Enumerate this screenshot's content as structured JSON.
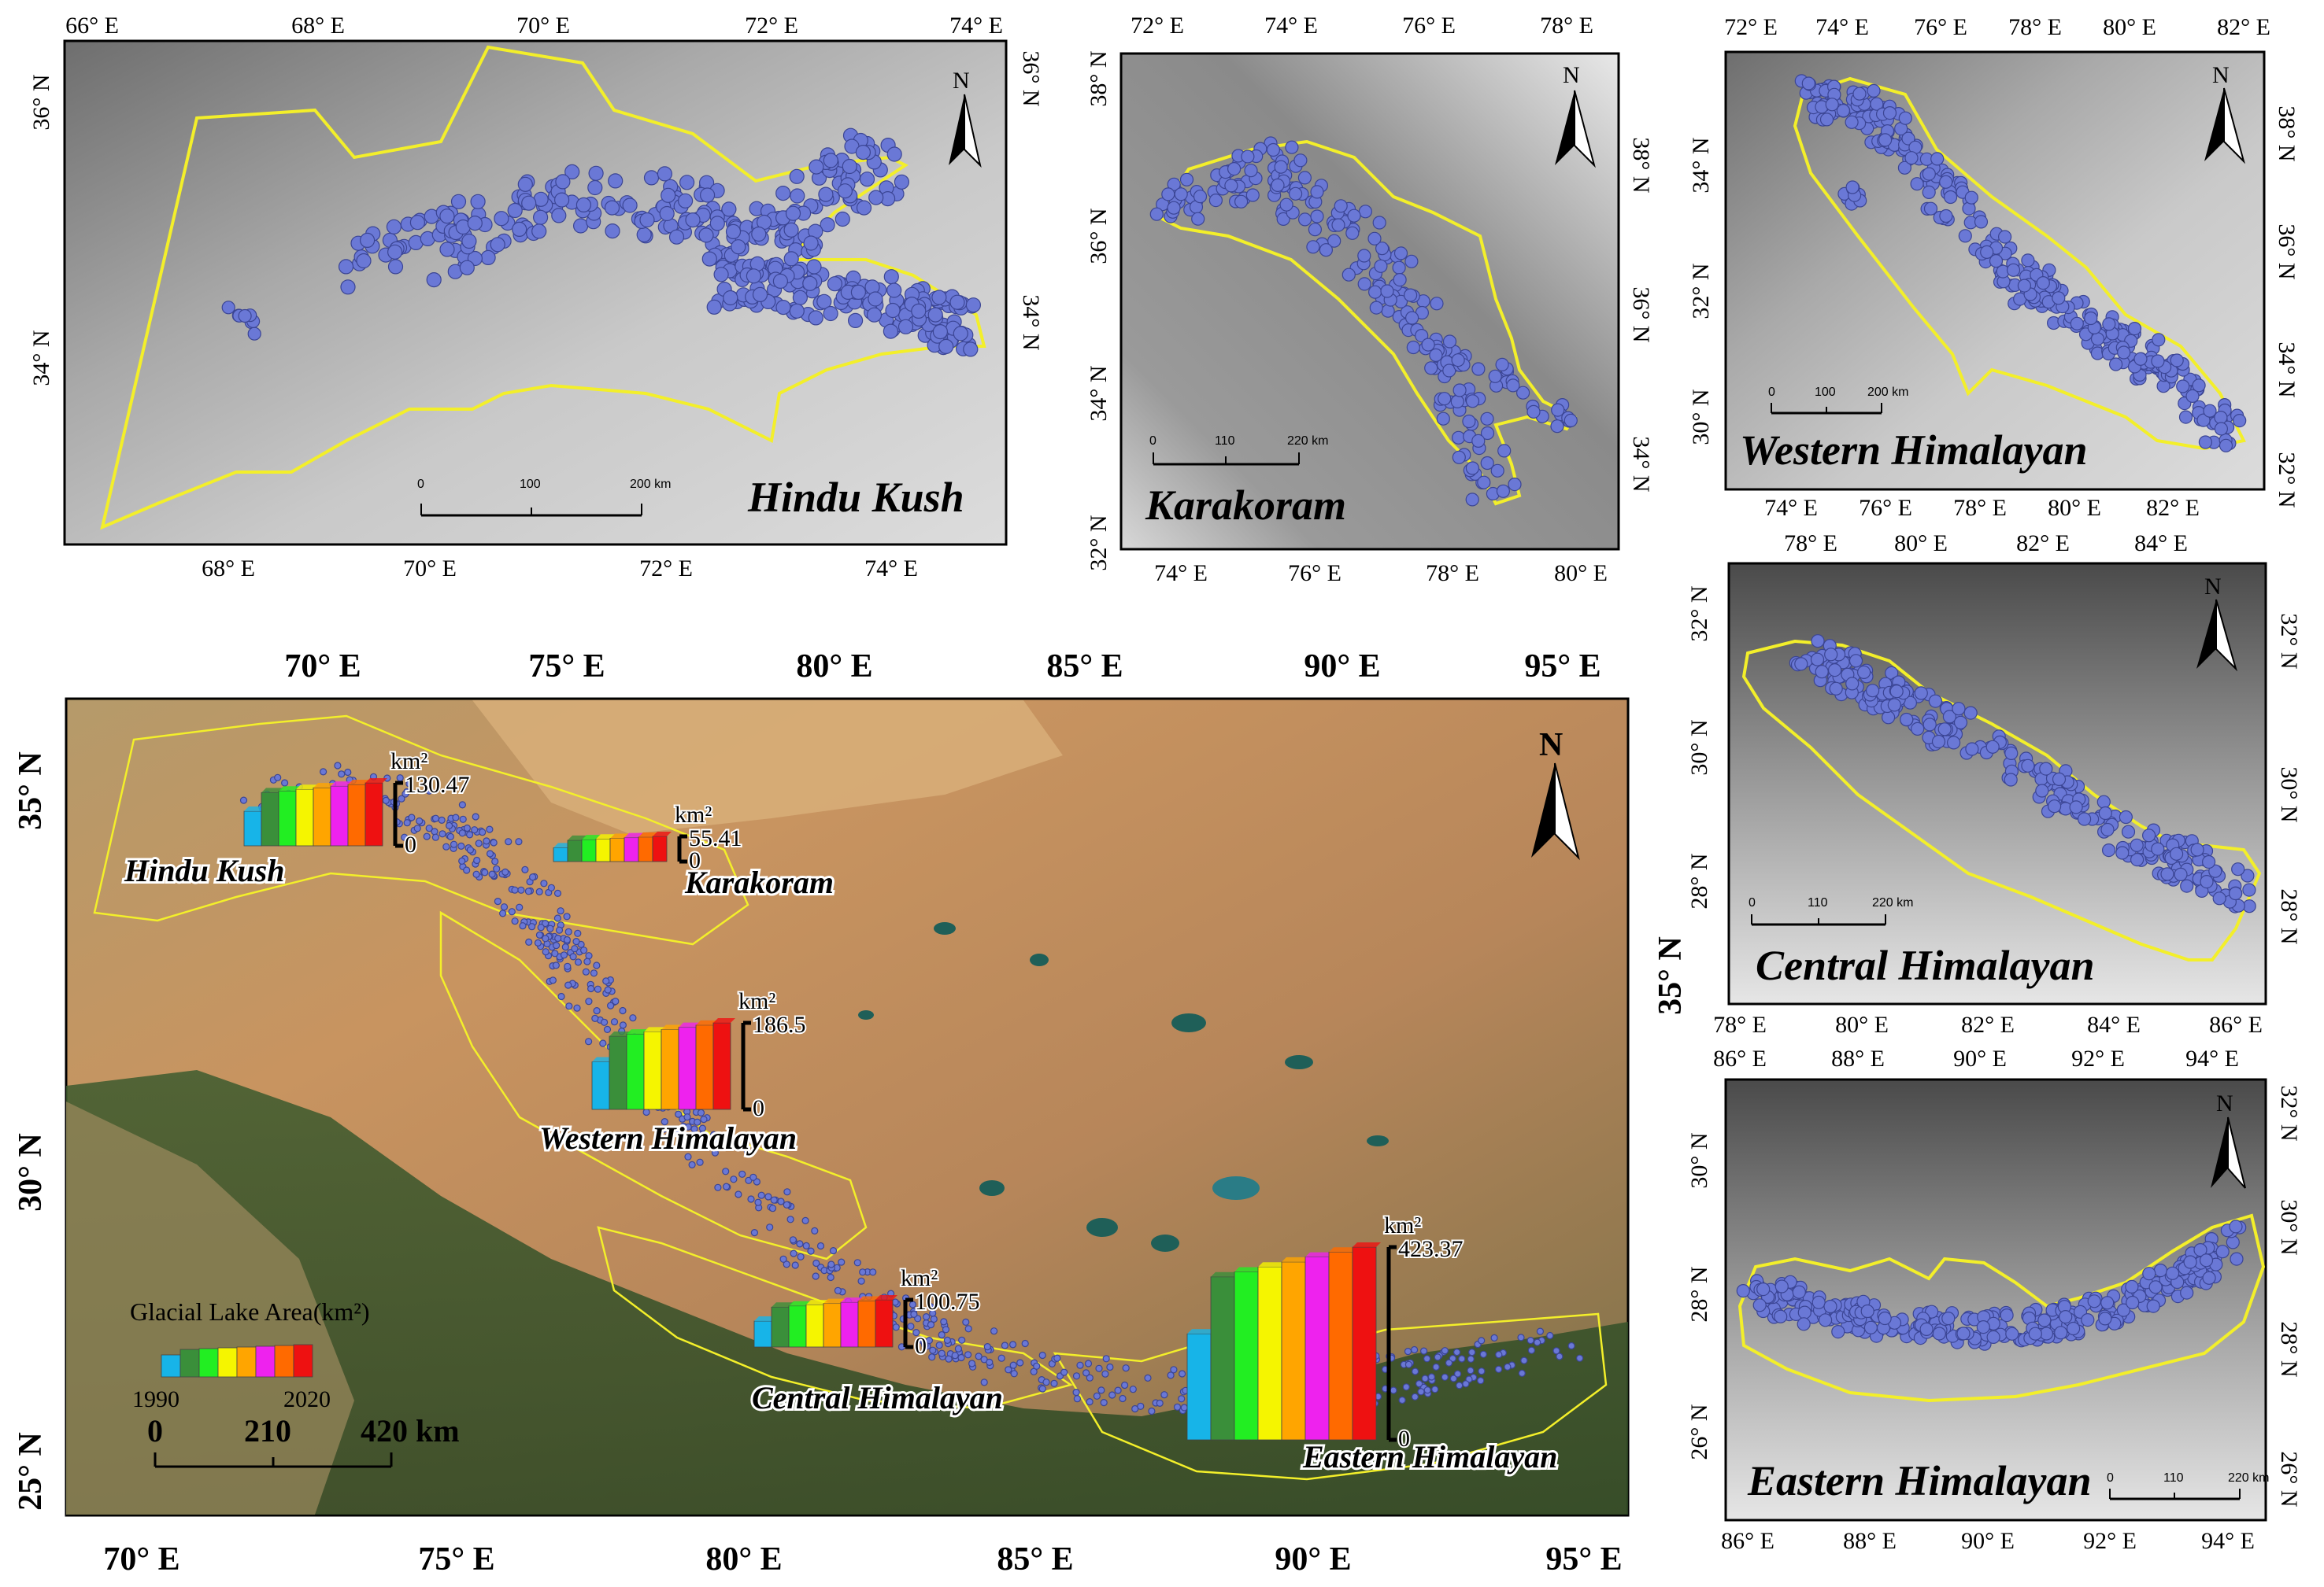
{
  "panels": {
    "hindu_kush": {
      "title": "Hindu Kush",
      "top_ticks": [
        "66° E",
        "68° E",
        "70° E",
        "72° E",
        "74° E"
      ],
      "bottom_ticks": [
        "68° E",
        "70° E",
        "72° E",
        "74° E"
      ],
      "left_ticks": [
        "36° N",
        "34° N"
      ],
      "right_ticks": [
        "36° N",
        "34° N"
      ],
      "scale": [
        "0",
        "100",
        "200 km"
      ],
      "north": "N"
    },
    "karakoram": {
      "title": "Karakoram",
      "top_ticks": [
        "72° E",
        "74° E",
        "76° E",
        "78° E"
      ],
      "bottom_ticks": [
        "74° E",
        "76° E",
        "78° E",
        "80° E"
      ],
      "left_ticks": [
        "38° N",
        "36° N",
        "34° N",
        "32° N"
      ],
      "right_ticks": [
        "38° N",
        "36° N",
        "34° N"
      ],
      "scale": [
        "0",
        "110",
        "220 km"
      ],
      "north": "N"
    },
    "western_himalayan": {
      "title": "Western Himalayan",
      "top_ticks": [
        "72° E",
        "74° E",
        "76° E",
        "78° E",
        "80° E",
        "82° E"
      ],
      "bottom_ticks": [
        "74° E",
        "76° E",
        "78° E",
        "80° E",
        "82° E"
      ],
      "left_ticks": [
        "34° N",
        "32° N",
        "30° N"
      ],
      "right_ticks": [
        "38° N",
        "36° N",
        "34° N",
        "32° N"
      ],
      "scale": [
        "0",
        "100",
        "200 km"
      ],
      "north": "N"
    },
    "central_himalayan": {
      "title": "Central Himalayan",
      "top_ticks": [
        "78° E",
        "80° E",
        "82° E",
        "84° E"
      ],
      "bottom_ticks": [
        "78° E",
        "80° E",
        "82° E",
        "84° E",
        "86° E"
      ],
      "left_ticks": [
        "32° N",
        "30° N",
        "28° N"
      ],
      "right_ticks": [
        "32° N",
        "30° N",
        "28° N"
      ],
      "scale": [
        "0",
        "110",
        "220 km"
      ],
      "north": "N"
    },
    "eastern_himalayan": {
      "title": "Eastern Himalayan",
      "top_ticks": [
        "86° E",
        "88° E",
        "90° E",
        "92° E",
        "94° E"
      ],
      "bottom_ticks": [
        "86° E",
        "88° E",
        "90° E",
        "92° E",
        "94° E"
      ],
      "left_ticks": [
        "30° N",
        "28° N",
        "26° N"
      ],
      "right_ticks": [
        "32° N",
        "30° N",
        "28° N",
        "26° N"
      ],
      "scale": [
        "0",
        "110",
        "220 km"
      ],
      "north": "N"
    }
  },
  "main_map": {
    "top_ticks": [
      "70° E",
      "75° E",
      "80° E",
      "85° E",
      "90° E",
      "95° E"
    ],
    "bottom_ticks": [
      "70° E",
      "75° E",
      "80° E",
      "85° E",
      "90° E",
      "95° E"
    ],
    "left_ticks": [
      "35° N",
      "30° N",
      "25° N"
    ],
    "right_ticks": [
      "35° N"
    ],
    "north": "N",
    "unit": "km²",
    "regions": [
      {
        "label": "Hindu Kush",
        "max": "130.47",
        "min": "0"
      },
      {
        "label": "Karakoram",
        "max": "55.41",
        "min": "0"
      },
      {
        "label": "Western Himalayan",
        "max": "186.5",
        "min": "0"
      },
      {
        "label": "Central Himalayan",
        "max": "100.75",
        "min": "0"
      },
      {
        "label": "Eastern Himalayan",
        "max": "423.37",
        "min": "0"
      }
    ],
    "legend": {
      "title": "Glacial Lake Area(km²)",
      "start": "1990",
      "end": "2020"
    },
    "scale": [
      "0",
      "210",
      "420 km"
    ]
  },
  "bar_colors": [
    "#17b4e8",
    "#3a8f3a",
    "#22ee22",
    "#f5f500",
    "#ffa500",
    "#ee22ee",
    "#ff6a00",
    "#ee1111"
  ],
  "chart_data": {
    "type": "bar",
    "title": "Glacial Lake Area(km²)",
    "ylabel": "km²",
    "x": [
      "1990",
      "2020"
    ],
    "series": [
      {
        "name": "Hindu Kush",
        "max": 130.47
      },
      {
        "name": "Karakoram",
        "max": 55.41
      },
      {
        "name": "Western Himalayan",
        "max": 186.5
      },
      {
        "name": "Central Himalayan",
        "max": 100.75
      },
      {
        "name": "Eastern Himalayan",
        "max": 423.37
      }
    ]
  }
}
